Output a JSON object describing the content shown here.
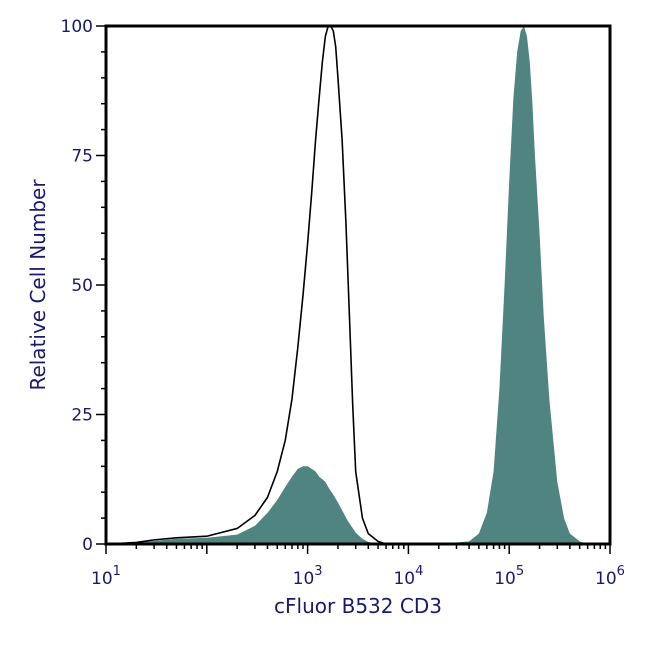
{
  "chart_data": {
    "type": "area",
    "title": "",
    "xlabel": "cFluor B532 CD3",
    "ylabel": "Relative Cell Number",
    "x_scale": "log",
    "xlim": [
      10,
      1000000
    ],
    "ylim": [
      0,
      100
    ],
    "grid": false,
    "legend": "none",
    "x_ticks": [
      {
        "value": 10,
        "base": "10",
        "exp": "1"
      },
      {
        "value": 1000,
        "base": "10",
        "exp": "3"
      },
      {
        "value": 10000,
        "base": "10",
        "exp": "4"
      },
      {
        "value": 100000,
        "base": "10",
        "exp": "5"
      },
      {
        "value": 1000000,
        "base": "10",
        "exp": "6"
      }
    ],
    "y_ticks": [
      {
        "value": 0,
        "label": "0"
      },
      {
        "value": 25,
        "label": "25"
      },
      {
        "value": 50,
        "label": "50"
      },
      {
        "value": 75,
        "label": "75"
      },
      {
        "value": 100,
        "label": "100"
      }
    ],
    "series": [
      {
        "style": "outline",
        "color": "#000000",
        "x": [
          10,
          20,
          30,
          50,
          100,
          200,
          300,
          400,
          500,
          600,
          700,
          800,
          900,
          1000,
          1100,
          1200,
          1300,
          1400,
          1500,
          1600,
          1700,
          1800,
          1900,
          2000,
          2200,
          2400,
          2600,
          2800,
          3000,
          3500,
          4000,
          5000,
          6000,
          10000
        ],
        "y": [
          0,
          0.3,
          0.8,
          1.2,
          1.5,
          3,
          5.5,
          9,
          14,
          20,
          28,
          38,
          48,
          58,
          68,
          78,
          86,
          93,
          98,
          100,
          100,
          99,
          96,
          90,
          78,
          62,
          44,
          27,
          14,
          5,
          2,
          0.5,
          0,
          0
        ]
      },
      {
        "style": "filled",
        "color": "#4f8481",
        "x": [
          10,
          20,
          50,
          100,
          200,
          300,
          400,
          500,
          600,
          700,
          800,
          900,
          1000,
          1100,
          1200,
          1300,
          1400,
          1500,
          1600,
          1800,
          2000,
          2200,
          2500,
          3000,
          3500,
          4000,
          5000,
          6000,
          10000,
          20000,
          40000,
          50000,
          60000,
          70000,
          80000,
          90000,
          100000,
          110000,
          120000,
          130000,
          140000,
          150000,
          160000,
          170000,
          180000,
          200000,
          220000,
          250000,
          300000,
          350000,
          400000,
          500000,
          600000,
          1000000
        ],
        "y": [
          0,
          0.3,
          1,
          1.2,
          1.8,
          3.5,
          6,
          8.5,
          11,
          13,
          14.5,
          15,
          15,
          14.5,
          14,
          13,
          12.5,
          12,
          11,
          9.5,
          8,
          6.5,
          4.5,
          2.2,
          1,
          0.4,
          0,
          0,
          0,
          0,
          0.5,
          2,
          6,
          14,
          30,
          50,
          70,
          86,
          95,
          99,
          100,
          98,
          93,
          85,
          75,
          60,
          44,
          28,
          12,
          5,
          2,
          0.5,
          0,
          0
        ]
      }
    ]
  }
}
